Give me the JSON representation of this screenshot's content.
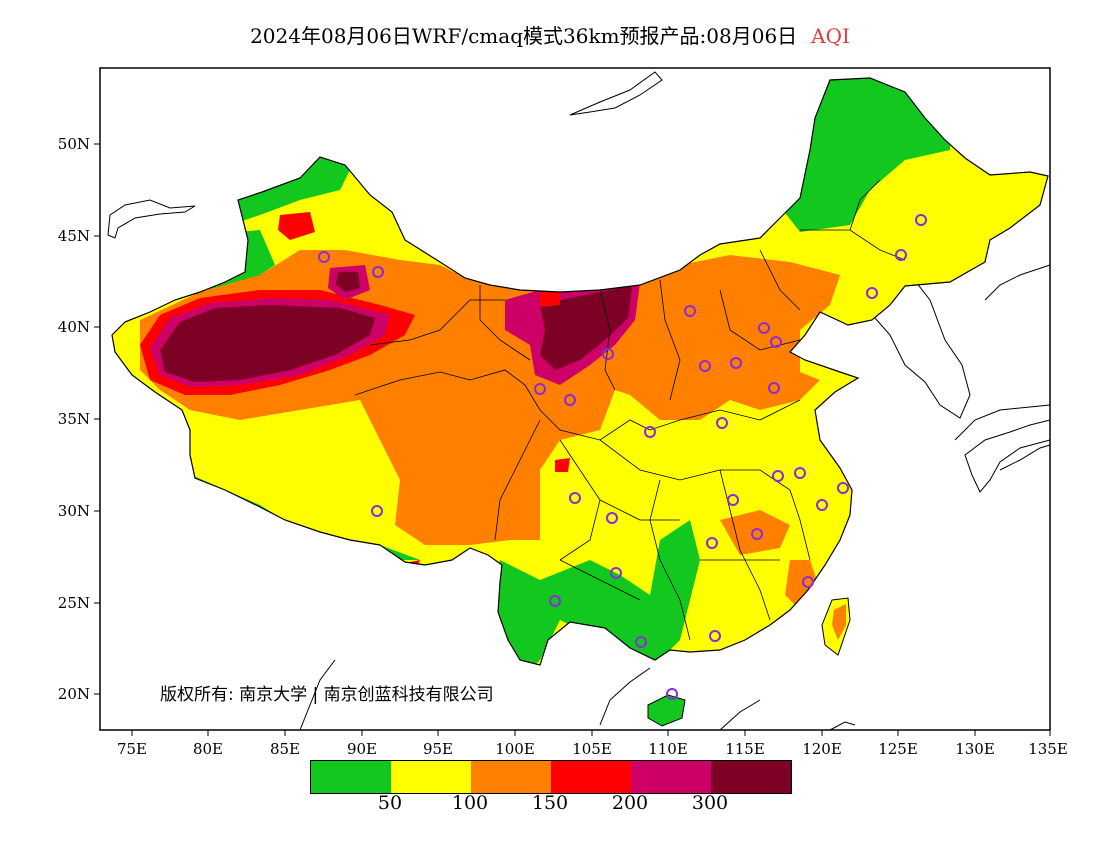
{
  "title": {
    "main": "2024年08月06日WRF/cmaq模式36km预报产品:08月06日",
    "pollutant": "AQI"
  },
  "axes": {
    "y_ticks": [
      "50N",
      "45N",
      "40N",
      "35N",
      "30N",
      "25N",
      "20N"
    ],
    "x_ticks": [
      "75E",
      "80E",
      "85E",
      "90E",
      "95E",
      "100E",
      "105E",
      "110E",
      "115E",
      "120E",
      "125E",
      "130E",
      "135E"
    ]
  },
  "copyright": "版权所有: 南京大学 | 南京创蓝科技有限公司",
  "legend": {
    "colors": [
      "#12c81e",
      "#ffff00",
      "#ff8000",
      "#ff0000",
      "#cc0066",
      "#7d0025"
    ],
    "labels": [
      "50",
      "100",
      "150",
      "200",
      "300"
    ]
  },
  "colors": {
    "frame": "#000000",
    "station_marker": "#8c2bd9"
  }
}
